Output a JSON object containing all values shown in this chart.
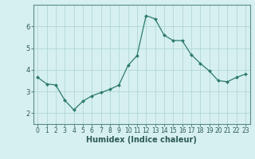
{
  "x": [
    0,
    1,
    2,
    3,
    4,
    5,
    6,
    7,
    8,
    9,
    10,
    11,
    12,
    13,
    14,
    15,
    16,
    17,
    18,
    19,
    20,
    21,
    22,
    23
  ],
  "y": [
    3.65,
    3.35,
    3.3,
    2.6,
    2.15,
    2.55,
    2.8,
    2.95,
    3.1,
    3.3,
    4.2,
    4.65,
    6.5,
    6.35,
    5.6,
    5.35,
    5.35,
    4.7,
    4.3,
    3.95,
    3.5,
    3.45,
    3.65,
    3.8
  ],
  "xlabel": "Humidex (Indice chaleur)",
  "ylim": [
    1.5,
    7.0
  ],
  "xlim": [
    -0.5,
    23.5
  ],
  "yticks": [
    2,
    3,
    4,
    5,
    6
  ],
  "xticks": [
    0,
    1,
    2,
    3,
    4,
    5,
    6,
    7,
    8,
    9,
    10,
    11,
    12,
    13,
    14,
    15,
    16,
    17,
    18,
    19,
    20,
    21,
    22,
    23
  ],
  "line_color": "#2d7a6e",
  "marker": "D",
  "marker_size": 2.0,
  "bg_color": "#d6f0ef",
  "grid_color": "#b0d8d5",
  "axes_color": "#5a8a85",
  "label_color": "#2d5a56",
  "xlabel_fontsize": 7.0,
  "tick_fontsize": 5.5
}
